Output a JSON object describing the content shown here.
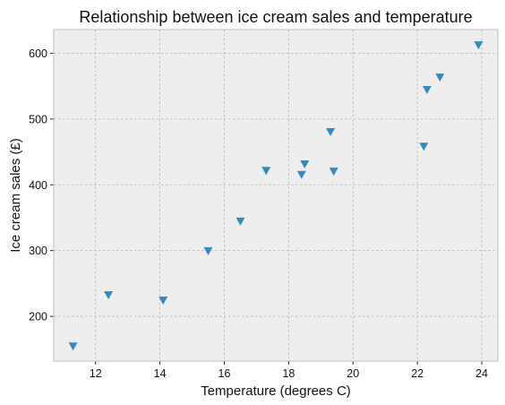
{
  "chart_data": {
    "type": "scatter",
    "title": "Relationship between ice cream sales and temperature",
    "xlabel": "Temperature (degrees C)",
    "ylabel": "Ice cream sales (£)",
    "xlim": [
      10.7,
      24.5
    ],
    "ylim": [
      132,
      636
    ],
    "xticks": [
      12,
      14,
      16,
      18,
      20,
      22,
      24
    ],
    "yticks": [
      200,
      300,
      400,
      500,
      600
    ],
    "grid": true,
    "marker": "triangle-down",
    "color": "#348abd",
    "background": "#eeeeee",
    "series": [
      {
        "x": [
          11.3,
          12.4,
          14.1,
          15.5,
          16.5,
          17.3,
          18.4,
          18.5,
          19.3,
          19.4,
          22.2,
          22.3,
          22.7,
          23.9
        ],
        "y": [
          154,
          232,
          224,
          299,
          344,
          421,
          415,
          431,
          480,
          420,
          458,
          544,
          563,
          612
        ]
      }
    ]
  }
}
